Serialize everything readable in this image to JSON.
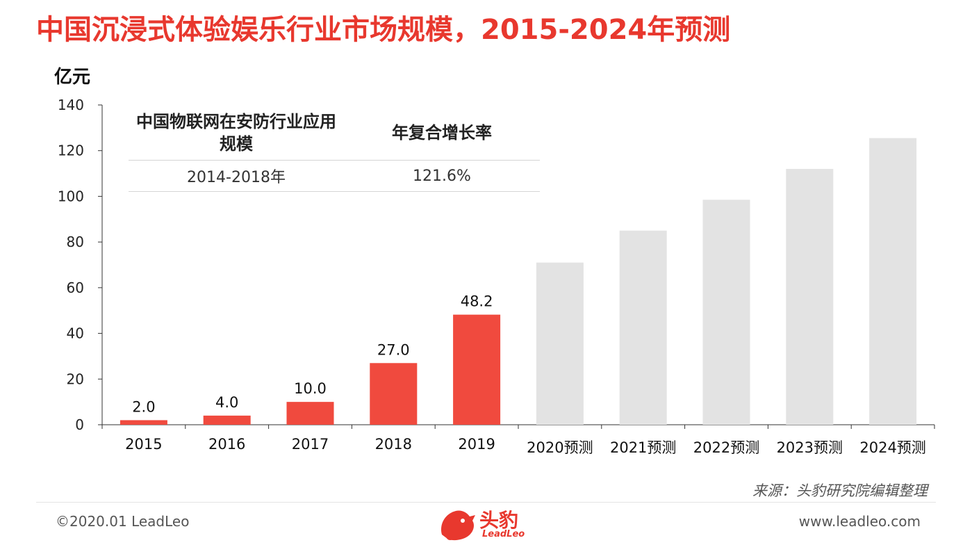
{
  "title": "中国沉浸式体验娱乐行业市场规模，2015-2024年预测",
  "unit_label": "亿元",
  "info_table": {
    "header_col1": "中国物联网在安防行业应用规模",
    "header_col2": "年复合增长率",
    "row_col1": "2014-2018年",
    "row_col2": "121.6%"
  },
  "colors": {
    "accent": "#e8382e",
    "bar_actual": "#f04a3e",
    "bar_forecast": "#e3e3e3"
  },
  "chart_data": {
    "type": "bar",
    "categories": [
      "2015",
      "2016",
      "2017",
      "2018",
      "2019",
      "2020预测",
      "2021预测",
      "2022预测",
      "2023预测",
      "2024预测"
    ],
    "values": [
      2.0,
      4.0,
      10.0,
      27.0,
      48.2,
      71.0,
      85.0,
      98.5,
      112.0,
      125.5
    ],
    "data_labels": [
      "2.0",
      "4.0",
      "10.0",
      "27.0",
      "48.2",
      "",
      "",
      "",
      "",
      ""
    ],
    "forecast": [
      false,
      false,
      false,
      false,
      false,
      true,
      true,
      true,
      true,
      true
    ],
    "ylim": [
      0,
      140
    ],
    "yticks": [
      0,
      20,
      40,
      60,
      80,
      100,
      120,
      140
    ],
    "ylabel": "亿元",
    "grid": false
  },
  "source": "来源：头豹研究院编辑整理",
  "footer": {
    "copyright": "©2020.01 LeadLeo",
    "website": "www.leadleo.com",
    "logo_text": "头豹",
    "logo_sub": "LeadLeo"
  }
}
